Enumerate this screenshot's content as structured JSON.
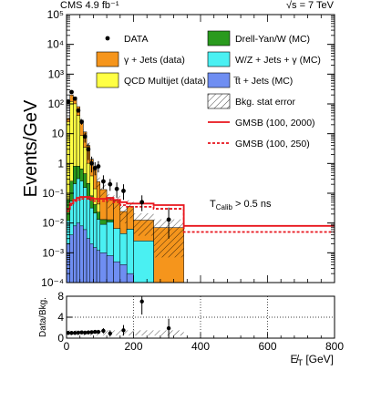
{
  "chart_data": [
    {
      "type": "bar",
      "panel": "main",
      "top_left_label": "CMS 4.9 fb⁻¹",
      "top_right_label": "√s = 7 TeV",
      "ylabel": "Events/GeV",
      "ylog": true,
      "ylim": [
        0.0001,
        100000
      ],
      "xlim": [
        0,
        800
      ],
      "ytick_labels": [
        "10⁻⁴",
        "10⁻³",
        "10⁻²",
        "10⁻¹",
        "1",
        "10",
        "10²",
        "10³",
        "10⁴",
        "10⁵"
      ],
      "annotation": "T_Calib > 0.5 ns",
      "annotation_main": "T",
      "annotation_sub": "Calib",
      "annotation_rest": " > 0.5 ns",
      "legend_placement": "top-right",
      "legend": [
        {
          "label": "DATA",
          "style": "marker"
        },
        {
          "label": "Drell-Yan/W (MC)",
          "style": "fill",
          "color": "#2a9a1e"
        },
        {
          "label": "γ + Jets (data)",
          "style": "fill",
          "color": "#f5951c"
        },
        {
          "label": "W/Z + Jets + γ (MC)",
          "style": "fill",
          "color": "#4af0f2"
        },
        {
          "label": "QCD Multijet (data)",
          "style": "fill",
          "color": "#ffff44"
        },
        {
          "label": "t̅t + Jets (MC)",
          "style": "fill",
          "color": "#6f8ef2"
        },
        {
          "label": "",
          "style": "none"
        },
        {
          "label": "Bkg. stat error",
          "style": "hatch"
        },
        {
          "label": "",
          "style": "none"
        },
        {
          "label": "GMSB (100, 2000)",
          "style": "line",
          "color": "#e8141c",
          "dash": false
        },
        {
          "label": "",
          "style": "none"
        },
        {
          "label": "GMSB (100, 250)",
          "style": "line",
          "color": "#e8141c",
          "dash": true
        }
      ],
      "bin_edges": [
        0,
        10,
        20,
        30,
        40,
        50,
        60,
        70,
        80,
        90,
        100,
        120,
        140,
        160,
        180,
        200,
        260,
        350,
        800
      ],
      "series": [
        {
          "name": "t̅t + Jets (MC)",
          "color": "#6f8ef2",
          "values": [
            0.002,
            0.004,
            0.008,
            0.01,
            0.008,
            0.006,
            0.003,
            0.002,
            0.0015,
            0.0012,
            0.001,
            0.0008,
            0.0005,
            0.0004,
            0.0002,
            0,
            0,
            0
          ]
        },
        {
          "name": "W/Z + Jets + γ (MC)",
          "color": "#4af0f2",
          "values": [
            0.01,
            0.05,
            0.2,
            0.3,
            0.25,
            0.15,
            0.06,
            0.03,
            0.02,
            0.012,
            0.008,
            0.01,
            0.006,
            0.004,
            0.006,
            0.0025,
            0,
            0
          ]
        },
        {
          "name": "Drell-Yan/W (MC)",
          "color": "#2a9a1e",
          "values": [
            0.05,
            0.2,
            0.6,
            0.5,
            0.4,
            0.3,
            0.15,
            0.05,
            0.02,
            0.01,
            0.004,
            0.002,
            0,
            0,
            0,
            0,
            0,
            0
          ]
        },
        {
          "name": "QCD Multijet (data)",
          "color": "#ffff44",
          "values": [
            25,
            120,
            100,
            40,
            8,
            3,
            0.8,
            0.3,
            0.1,
            0.02,
            0,
            0,
            0,
            0,
            0,
            0,
            0,
            0
          ]
        },
        {
          "name": "γ + Jets (data)",
          "color": "#f5951c",
          "values": [
            8,
            80,
            70,
            40,
            20,
            8,
            3,
            1,
            0.5,
            0.2,
            0.12,
            0.05,
            0.05,
            0.02,
            0.03,
            0.01,
            0.007,
            0
          ]
        }
      ],
      "bkg_stat_error_relative": [
        0.15,
        0.1,
        0.1,
        0.12,
        0.15,
        0.2,
        0.25,
        0.3,
        0.35,
        0.4,
        0.45,
        0.5,
        0.5,
        0.6,
        0.6,
        0.7,
        0.9,
        0
      ],
      "data": {
        "x": [
          5,
          15,
          25,
          35,
          45,
          55,
          65,
          75,
          85,
          95,
          110,
          130,
          150,
          170,
          225,
          305
        ],
        "y": [
          120,
          250,
          150,
          60,
          25,
          8,
          3,
          1,
          0.7,
          0.8,
          0.25,
          0.2,
          0.14,
          0.12,
          0.05,
          0.013
        ],
        "err_low": [
          11,
          16,
          12,
          8,
          5,
          3,
          1.7,
          0.5,
          0.3,
          0.3,
          0.11,
          0.08,
          0.07,
          0.06,
          0.025,
          0.01
        ],
        "err_high": [
          11,
          16,
          12,
          8,
          5,
          3,
          1.7,
          0.7,
          0.4,
          0.4,
          0.15,
          0.1,
          0.09,
          0.08,
          0.035,
          0.02
        ]
      },
      "signal_lines": [
        {
          "name": "GMSB (100, 2000)",
          "color": "#e8141c",
          "dash": false,
          "steps": [
            [
              0,
              0.03
            ],
            [
              10,
              0.045
            ],
            [
              20,
              0.06
            ],
            [
              30,
              0.07
            ],
            [
              40,
              0.075
            ],
            [
              50,
              0.075
            ],
            [
              60,
              0.075
            ],
            [
              70,
              0.07
            ],
            [
              80,
              0.065
            ],
            [
              90,
              0.065
            ],
            [
              100,
              0.065
            ],
            [
              120,
              0.07
            ],
            [
              140,
              0.06
            ],
            [
              160,
              0.05
            ],
            [
              180,
              0.045
            ],
            [
              200,
              0.045
            ],
            [
              260,
              0.04
            ],
            [
              350,
              0.008
            ],
            [
              800,
              0.008
            ]
          ]
        },
        {
          "name": "GMSB (100, 250)",
          "color": "#e8141c",
          "dash": true,
          "steps": [
            [
              0,
              0.025
            ],
            [
              10,
              0.04
            ],
            [
              20,
              0.055
            ],
            [
              30,
              0.06
            ],
            [
              40,
              0.065
            ],
            [
              50,
              0.065
            ],
            [
              60,
              0.065
            ],
            [
              70,
              0.06
            ],
            [
              80,
              0.055
            ],
            [
              90,
              0.055
            ],
            [
              100,
              0.055
            ],
            [
              120,
              0.06
            ],
            [
              140,
              0.05
            ],
            [
              160,
              0.04
            ],
            [
              180,
              0.035
            ],
            [
              200,
              0.035
            ],
            [
              260,
              0.03
            ],
            [
              350,
              0.005
            ],
            [
              800,
              0.005
            ]
          ]
        }
      ]
    },
    {
      "type": "scatter",
      "panel": "ratio",
      "ylabel": "Data/Bkg.",
      "xlabel": "E̸_T [GeV]",
      "xlabel_main": "E̸",
      "xlabel_sub": "T",
      "xlabel_rest": " [GeV]",
      "xlim": [
        0,
        800
      ],
      "ylim": [
        0,
        8
      ],
      "xtick_labels": [
        "0",
        "200",
        "400",
        "600",
        "800"
      ],
      "ytick_labels": [
        "0",
        "4",
        "8"
      ],
      "gridlines_y": [
        4
      ],
      "gridlines_x": [
        200,
        400,
        600
      ],
      "points": {
        "x": [
          5,
          15,
          25,
          35,
          45,
          55,
          65,
          75,
          85,
          95,
          110,
          130,
          170,
          225,
          305
        ],
        "y": [
          1.0,
          1.0,
          1.0,
          1.05,
          1.1,
          1.05,
          1.1,
          1.15,
          1.2,
          1.2,
          1.4,
          0.9,
          1.5,
          7.0,
          1.9
        ],
        "err": [
          0.1,
          0.1,
          0.1,
          0.15,
          0.2,
          0.2,
          0.25,
          0.3,
          0.3,
          0.3,
          0.5,
          0.6,
          1.0,
          2.5,
          1.8
        ]
      },
      "error_band": {
        "x0": 0,
        "x1": 350,
        "low": 0.5,
        "high": 1.5
      }
    }
  ]
}
